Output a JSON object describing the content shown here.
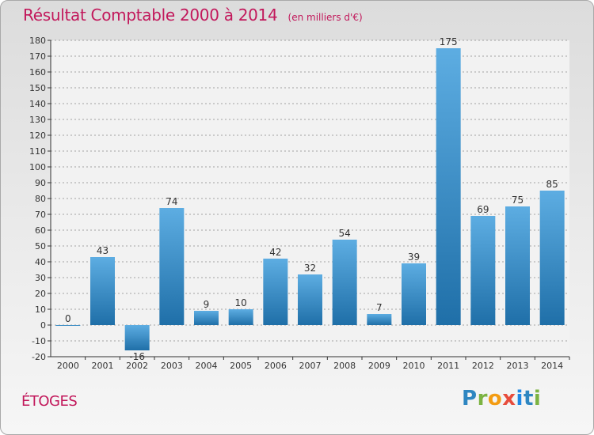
{
  "header": {
    "title": "Résultat Comptable 2000 à 2014",
    "subtitle": "(en milliers d'€)"
  },
  "footer": {
    "commune": "ÉTOGES",
    "logo_text": "Proxiti"
  },
  "colors": {
    "title": "#c2185b",
    "bar_light": "#5dade2",
    "bar_dark": "#1f6fa8",
    "grid": "#555555",
    "plot_bg": "#f2f2f2"
  },
  "chart_data": {
    "type": "bar",
    "title": "Résultat Comptable 2000 à 2014",
    "xlabel": "",
    "ylabel": "",
    "categories": [
      "2000",
      "2001",
      "2002",
      "2003",
      "2004",
      "2005",
      "2006",
      "2007",
      "2008",
      "2009",
      "2010",
      "2011",
      "2012",
      "2013",
      "2014"
    ],
    "values": [
      0,
      43,
      -16,
      74,
      9,
      10,
      42,
      32,
      54,
      7,
      39,
      175,
      69,
      75,
      85
    ],
    "ylim": [
      -20,
      180
    ],
    "ytick_step": 10,
    "grid": "dashed-horizontal",
    "legend": "none"
  }
}
